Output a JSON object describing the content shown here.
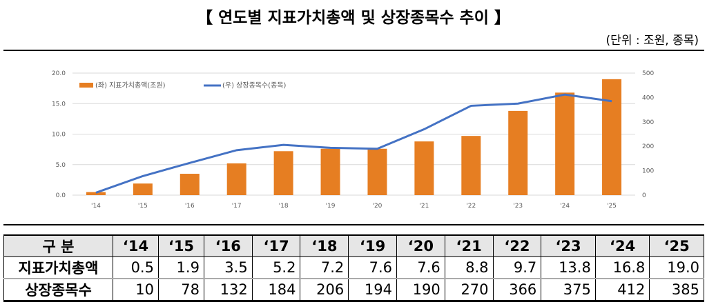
{
  "title": "【 연도별 지표가치총액 및 상장종목수 추이 】",
  "unit": "(단위 : 조원, 종목)",
  "chart_data": {
    "type": "bar+line",
    "categories": [
      "'14",
      "'15",
      "'16",
      "'17",
      "'18",
      "'19",
      "'20",
      "'21",
      "'22",
      "'23",
      "'24",
      "'25"
    ],
    "series": [
      {
        "name": "(좌) 지표가치총액(조원)",
        "type": "bar",
        "axis": "left",
        "color": "#E67E22",
        "values": [
          0.5,
          1.9,
          3.5,
          5.2,
          7.2,
          7.6,
          7.6,
          8.8,
          9.7,
          13.8,
          16.8,
          19.0
        ]
      },
      {
        "name": "(우) 상장종목수(종목)",
        "type": "line",
        "axis": "right",
        "color": "#4472C4",
        "values": [
          10,
          78,
          132,
          184,
          206,
          194,
          190,
          270,
          366,
          375,
          412,
          385
        ]
      }
    ],
    "ylim_left": [
      0,
      20
    ],
    "yticks_left": [
      "0.0",
      "5.0",
      "10.0",
      "15.0",
      "20.0"
    ],
    "ylim_right": [
      0,
      500
    ],
    "yticks_right": [
      "0",
      "100",
      "200",
      "300",
      "400",
      "500"
    ],
    "grid": true,
    "legend": "top-left"
  },
  "table": {
    "header": [
      "구 분",
      "‘14",
      "‘15",
      "‘16",
      "‘17",
      "‘18",
      "‘19",
      "‘20",
      "‘21",
      "‘22",
      "‘23",
      "‘24",
      "‘25"
    ],
    "rows": [
      {
        "label": "지표가치총액",
        "values": [
          "0.5",
          "1.9",
          "3.5",
          "5.2",
          "7.2",
          "7.6",
          "7.6",
          "8.8",
          "9.7",
          "13.8",
          "16.8",
          "19.0"
        ]
      },
      {
        "label": "상장종목수",
        "values": [
          "10",
          "78",
          "132",
          "184",
          "206",
          "194",
          "190",
          "270",
          "366",
          "375",
          "412",
          "385"
        ]
      }
    ]
  }
}
